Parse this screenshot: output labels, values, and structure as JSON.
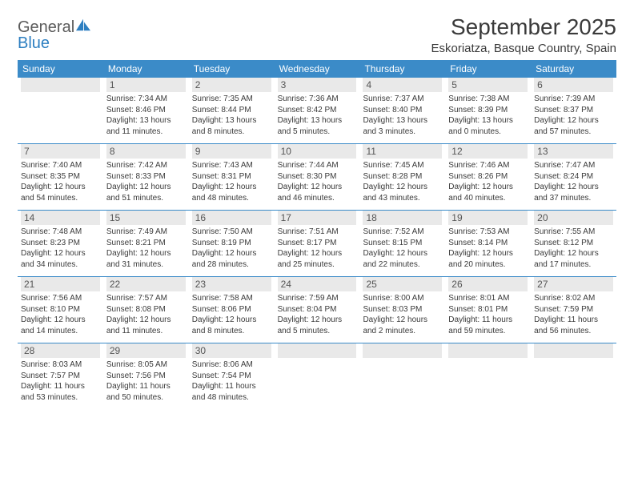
{
  "brand": {
    "general": "General",
    "blue": "Blue"
  },
  "title": "September 2025",
  "location": "Eskoriatza, Basque Country, Spain",
  "colors": {
    "header_bg": "#3b8bc8",
    "header_fg": "#ffffff",
    "daynum_bg": "#e9e9e9",
    "sep": "#3b8bc8",
    "text": "#3a3a3a"
  },
  "dayNames": [
    "Sunday",
    "Monday",
    "Tuesday",
    "Wednesday",
    "Thursday",
    "Friday",
    "Saturday"
  ],
  "weeks": [
    [
      {
        "n": "",
        "empty": true
      },
      {
        "n": "1",
        "sr": "7:34 AM",
        "ss": "8:46 PM",
        "dl": "13 hours and 11 minutes."
      },
      {
        "n": "2",
        "sr": "7:35 AM",
        "ss": "8:44 PM",
        "dl": "13 hours and 8 minutes."
      },
      {
        "n": "3",
        "sr": "7:36 AM",
        "ss": "8:42 PM",
        "dl": "13 hours and 5 minutes."
      },
      {
        "n": "4",
        "sr": "7:37 AM",
        "ss": "8:40 PM",
        "dl": "13 hours and 3 minutes."
      },
      {
        "n": "5",
        "sr": "7:38 AM",
        "ss": "8:39 PM",
        "dl": "13 hours and 0 minutes."
      },
      {
        "n": "6",
        "sr": "7:39 AM",
        "ss": "8:37 PM",
        "dl": "12 hours and 57 minutes."
      }
    ],
    [
      {
        "n": "7",
        "sr": "7:40 AM",
        "ss": "8:35 PM",
        "dl": "12 hours and 54 minutes."
      },
      {
        "n": "8",
        "sr": "7:42 AM",
        "ss": "8:33 PM",
        "dl": "12 hours and 51 minutes."
      },
      {
        "n": "9",
        "sr": "7:43 AM",
        "ss": "8:31 PM",
        "dl": "12 hours and 48 minutes."
      },
      {
        "n": "10",
        "sr": "7:44 AM",
        "ss": "8:30 PM",
        "dl": "12 hours and 46 minutes."
      },
      {
        "n": "11",
        "sr": "7:45 AM",
        "ss": "8:28 PM",
        "dl": "12 hours and 43 minutes."
      },
      {
        "n": "12",
        "sr": "7:46 AM",
        "ss": "8:26 PM",
        "dl": "12 hours and 40 minutes."
      },
      {
        "n": "13",
        "sr": "7:47 AM",
        "ss": "8:24 PM",
        "dl": "12 hours and 37 minutes."
      }
    ],
    [
      {
        "n": "14",
        "sr": "7:48 AM",
        "ss": "8:23 PM",
        "dl": "12 hours and 34 minutes."
      },
      {
        "n": "15",
        "sr": "7:49 AM",
        "ss": "8:21 PM",
        "dl": "12 hours and 31 minutes."
      },
      {
        "n": "16",
        "sr": "7:50 AM",
        "ss": "8:19 PM",
        "dl": "12 hours and 28 minutes."
      },
      {
        "n": "17",
        "sr": "7:51 AM",
        "ss": "8:17 PM",
        "dl": "12 hours and 25 minutes."
      },
      {
        "n": "18",
        "sr": "7:52 AM",
        "ss": "8:15 PM",
        "dl": "12 hours and 22 minutes."
      },
      {
        "n": "19",
        "sr": "7:53 AM",
        "ss": "8:14 PM",
        "dl": "12 hours and 20 minutes."
      },
      {
        "n": "20",
        "sr": "7:55 AM",
        "ss": "8:12 PM",
        "dl": "12 hours and 17 minutes."
      }
    ],
    [
      {
        "n": "21",
        "sr": "7:56 AM",
        "ss": "8:10 PM",
        "dl": "12 hours and 14 minutes."
      },
      {
        "n": "22",
        "sr": "7:57 AM",
        "ss": "8:08 PM",
        "dl": "12 hours and 11 minutes."
      },
      {
        "n": "23",
        "sr": "7:58 AM",
        "ss": "8:06 PM",
        "dl": "12 hours and 8 minutes."
      },
      {
        "n": "24",
        "sr": "7:59 AM",
        "ss": "8:04 PM",
        "dl": "12 hours and 5 minutes."
      },
      {
        "n": "25",
        "sr": "8:00 AM",
        "ss": "8:03 PM",
        "dl": "12 hours and 2 minutes."
      },
      {
        "n": "26",
        "sr": "8:01 AM",
        "ss": "8:01 PM",
        "dl": "11 hours and 59 minutes."
      },
      {
        "n": "27",
        "sr": "8:02 AM",
        "ss": "7:59 PM",
        "dl": "11 hours and 56 minutes."
      }
    ],
    [
      {
        "n": "28",
        "sr": "8:03 AM",
        "ss": "7:57 PM",
        "dl": "11 hours and 53 minutes."
      },
      {
        "n": "29",
        "sr": "8:05 AM",
        "ss": "7:56 PM",
        "dl": "11 hours and 50 minutes."
      },
      {
        "n": "30",
        "sr": "8:06 AM",
        "ss": "7:54 PM",
        "dl": "11 hours and 48 minutes."
      },
      {
        "n": "",
        "empty": true
      },
      {
        "n": "",
        "empty": true
      },
      {
        "n": "",
        "empty": true
      },
      {
        "n": "",
        "empty": true
      }
    ]
  ],
  "labels": {
    "sunrise": "Sunrise: ",
    "sunset": "Sunset: ",
    "daylight": "Daylight: "
  }
}
